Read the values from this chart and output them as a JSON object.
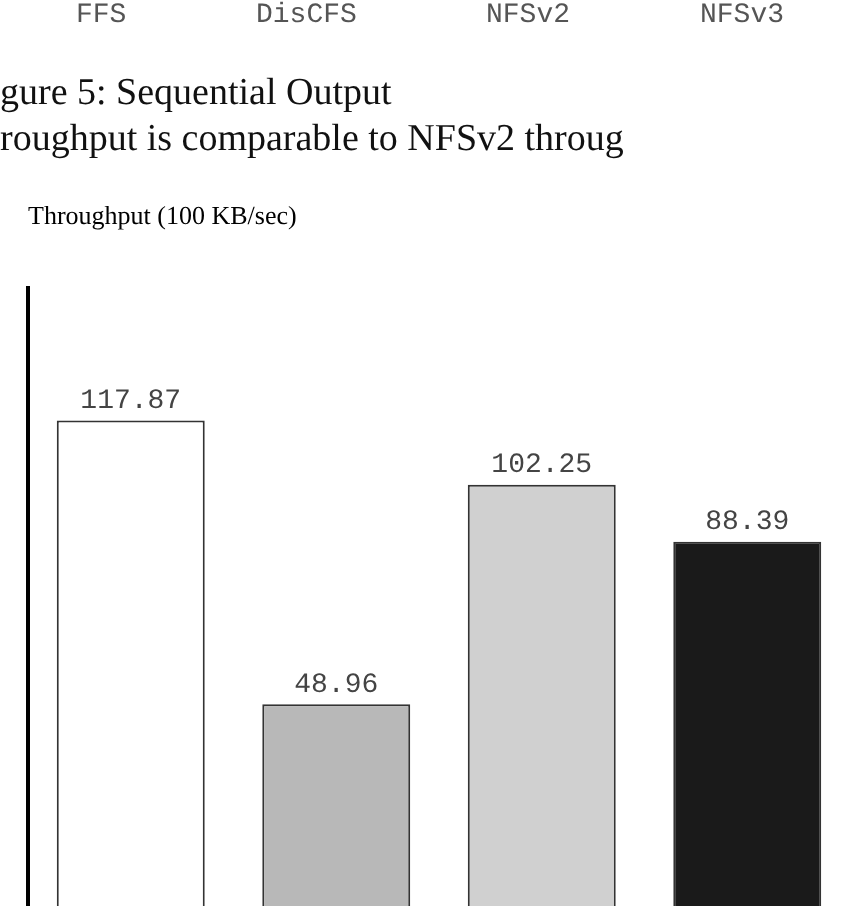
{
  "chart_data": {
    "type": "bar",
    "ylabel": "Throughput (100 KB/sec)",
    "annotations": [
      "FFS",
      "DisCFS",
      "NFSv2",
      "NFSv3",
      "gure 5: Sequential Output",
      "roughput is comparable to NFSv2 throug"
    ],
    "categories": [
      null,
      null,
      null,
      null
    ],
    "values": [
      117.87,
      48.96,
      102.25,
      88.39
    ],
    "colors": [
      "#ffffff",
      "#b8b8b8",
      "#d0d0d0",
      "#1a1a1a"
    ],
    "ylim": [
      0,
      150
    ],
    "tick_labels": false,
    "data_labels": true,
    "grid": false,
    "legend": false
  }
}
